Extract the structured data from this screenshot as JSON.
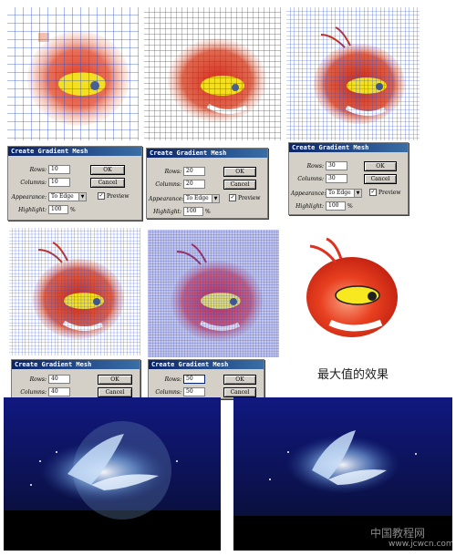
{
  "dialog_title": "Create Gradient Mesh",
  "labels": {
    "rows": "Rows:",
    "columns": "Columns:",
    "appearance": "Appearance:",
    "highlight": "Highlight:",
    "ok": "OK",
    "cancel": "Cancel",
    "preview": "Preview",
    "percent": "%"
  },
  "dialogs": [
    {
      "rows": "10",
      "columns": "10",
      "appearance": "To Edge",
      "highlight": "100",
      "preview": true
    },
    {
      "rows": "20",
      "columns": "20",
      "appearance": "To Edge",
      "highlight": "100",
      "preview": true
    },
    {
      "rows": "30",
      "columns": "30",
      "appearance": "To Edge",
      "highlight": "100",
      "preview": true
    },
    {
      "rows": "40",
      "columns": "40"
    },
    {
      "rows": "50",
      "columns": "50"
    }
  ],
  "caption": "最大值的效果",
  "watermark": {
    "logo": "中国教程网",
    "url": "www.jcwcn.com"
  },
  "colors": {
    "mesh": "#3050c8",
    "title_bar": "#0a246a",
    "dialog_bg": "#d4d0c8"
  }
}
